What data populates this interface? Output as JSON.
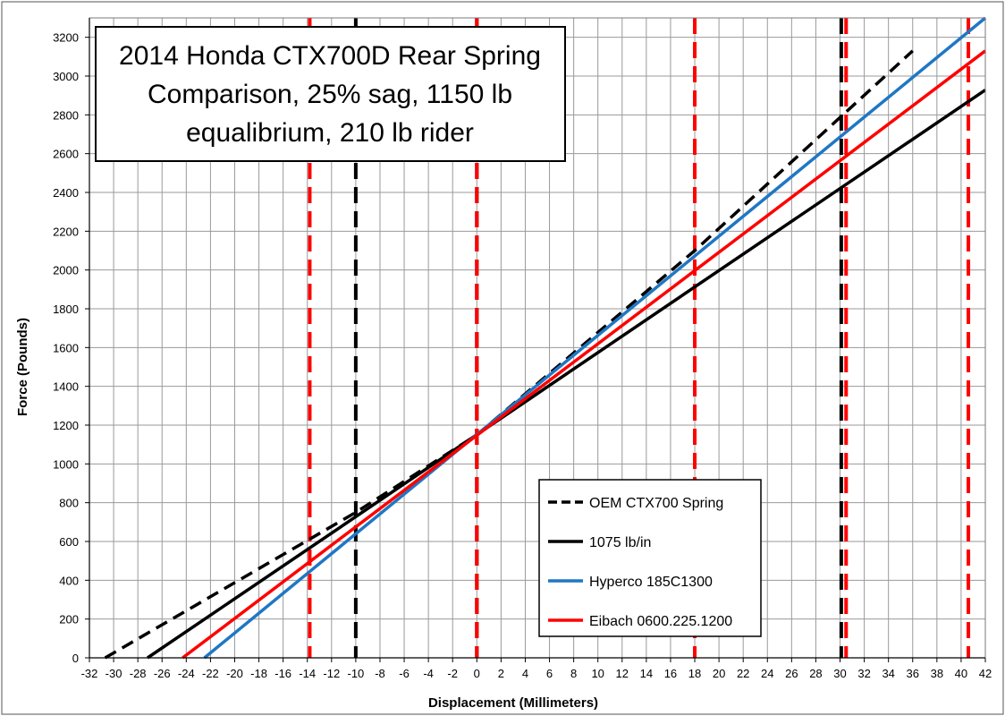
{
  "chart_data": {
    "type": "line",
    "title_lines": [
      "2014 Honda CTX700D Rear Spring",
      "Comparison, 25% sag, 1150 lb",
      "equalibrium, 210 lb rider"
    ],
    "xlabel": "Displacement (Millimeters)",
    "ylabel": "Force (Pounds)",
    "xlim": [
      -32,
      42
    ],
    "ylim": [
      0,
      3300
    ],
    "xticks": [
      -32,
      -30,
      -28,
      -26,
      -24,
      -22,
      -20,
      -18,
      -16,
      -14,
      -12,
      -10,
      -8,
      -6,
      -4,
      -2,
      0,
      2,
      4,
      6,
      8,
      10,
      12,
      14,
      16,
      18,
      20,
      22,
      24,
      26,
      28,
      30,
      32,
      34,
      36,
      38,
      40,
      42
    ],
    "yticks": [
      0,
      200,
      400,
      600,
      800,
      1000,
      1200,
      1400,
      1600,
      1800,
      2000,
      2200,
      2400,
      2600,
      2800,
      3000,
      3200
    ],
    "grid": true,
    "legend_position": "bottom-right",
    "series": [
      {
        "name": "OEM CTX700 Spring",
        "color": "#000000",
        "style": "dashed",
        "x": [
          -30.7,
          -10,
          0,
          18,
          36
        ],
        "y": [
          0,
          750,
          1150,
          2100,
          3130
        ]
      },
      {
        "name": "1075 lb/in",
        "color": "#000000",
        "style": "solid",
        "x": [
          -27.2,
          42
        ],
        "y": [
          0,
          2928
        ]
      },
      {
        "name": "Hyperco 185C1300",
        "color": "#1f77c4",
        "style": "solid",
        "x": [
          -22.5,
          42
        ],
        "y": [
          0,
          3300
        ]
      },
      {
        "name": "Eibach 0600.225.1200",
        "color": "#ff0000",
        "style": "solid",
        "x": [
          -24.3,
          42
        ],
        "y": [
          0,
          3130
        ]
      }
    ],
    "vertical_markers": [
      {
        "x": -13.8,
        "color": "#ff0000"
      },
      {
        "x": -10,
        "color": "#000000"
      },
      {
        "x": 0,
        "color": "#000000"
      },
      {
        "x": 0,
        "color": "#ff0000"
      },
      {
        "x": 18,
        "color": "#ff0000"
      },
      {
        "x": 30.1,
        "color": "#000000"
      },
      {
        "x": 30.5,
        "color": "#ff0000"
      },
      {
        "x": 40.6,
        "color": "#ff0000"
      }
    ]
  }
}
